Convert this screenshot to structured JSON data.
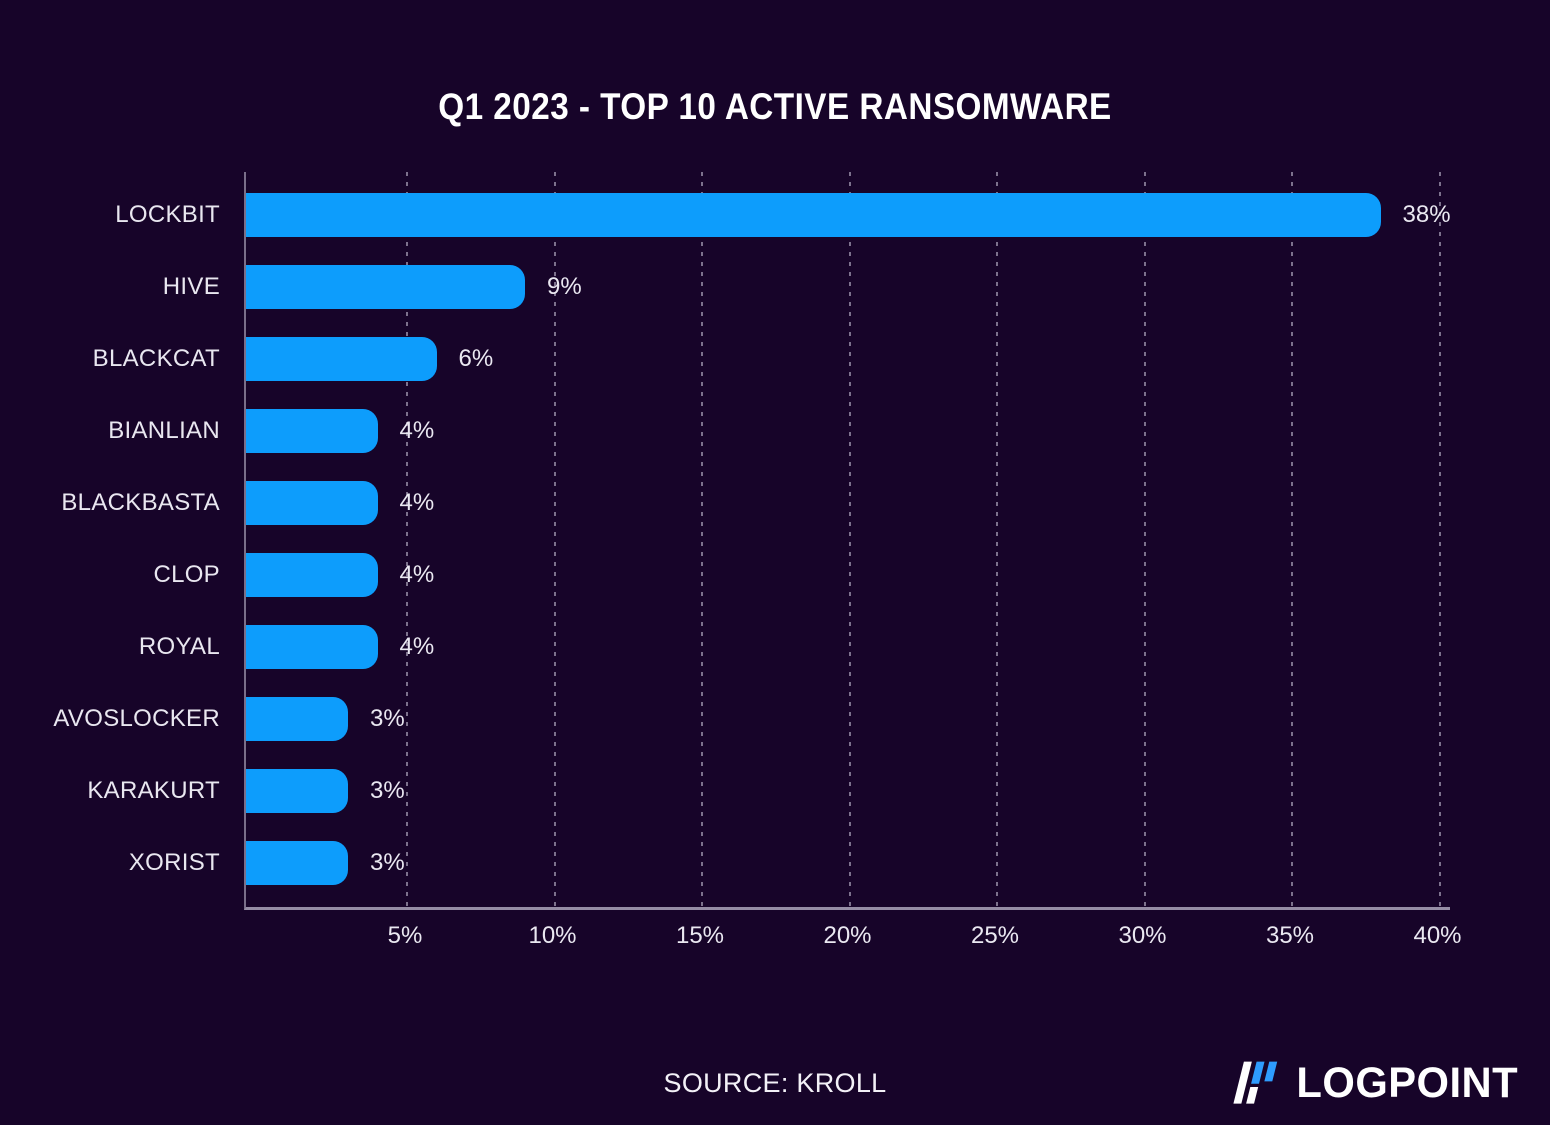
{
  "title": "Q1 2023 - TOP 10 ACTIVE RANSOMWARE",
  "chart_data": {
    "type": "bar",
    "orientation": "horizontal",
    "title": "Q1 2023 - TOP 10 ACTIVE RANSOMWARE",
    "categories": [
      "LOCKBIT",
      "HIVE",
      "BLACKCAT",
      "BIANLIAN",
      "BLACKBASTA",
      "CLOP",
      "ROYAL",
      "AVOSLOCKER",
      "KARAKURT",
      "XORIST"
    ],
    "values": [
      38,
      9,
      6,
      4,
      4,
      4,
      4,
      3,
      3,
      3
    ],
    "value_labels": [
      "38%",
      "9%",
      "6%",
      "4%",
      "4%",
      "4%",
      "4%",
      "3%",
      "3%",
      "3%"
    ],
    "x_tick_values": [
      5,
      10,
      15,
      20,
      25,
      30,
      35,
      40
    ],
    "x_tick_labels": [
      "5%",
      "10%",
      "15%",
      "20%",
      "25%",
      "30%",
      "35%",
      "40%"
    ],
    "xlim": [
      0,
      40.5
    ],
    "xlabel": "",
    "ylabel": "",
    "grid": "dashed-vertical-on",
    "legend": "none",
    "bar_color": "#0d9dfc",
    "background_color": "#170429",
    "label_color": "#e9e7f0"
  },
  "footer": {
    "source": "SOURCE: KROLL",
    "logo_text": "LOGPOINT",
    "logo_icon": "logpoint-flag-icon",
    "logo_blue": "#2e9cfe",
    "logo_white": "#ffffff"
  }
}
